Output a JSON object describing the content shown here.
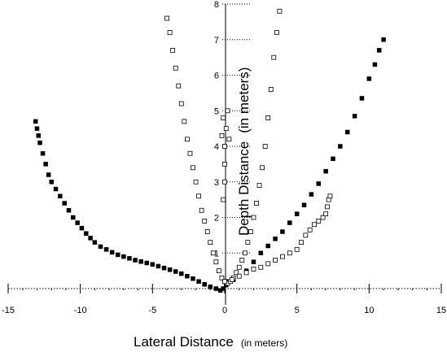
{
  "chart_data": {
    "type": "scatter",
    "title": "",
    "xlabel": "Lateral Distance",
    "xlabel_unit": "(in meters)",
    "ylabel": "Depth Distance",
    "ylabel_unit": "(in meters)",
    "xlim": [
      -15,
      15
    ],
    "ylim": [
      0,
      8
    ],
    "x_ticks": [
      -15,
      -10,
      -5,
      0,
      5,
      10,
      15
    ],
    "y_ticks": [
      1,
      2,
      3,
      4,
      5,
      6,
      7,
      8
    ],
    "grid": false,
    "legend": "none",
    "series": [
      {
        "marker": "filled-square",
        "points": [
          [
            -13.1,
            4.7
          ],
          [
            -13.0,
            4.5
          ],
          [
            -12.9,
            4.3
          ],
          [
            -12.8,
            4.1
          ],
          [
            -12.6,
            3.8
          ],
          [
            -12.4,
            3.5
          ],
          [
            -12.2,
            3.2
          ],
          [
            -12.0,
            3.0
          ],
          [
            -11.7,
            2.8
          ],
          [
            -11.4,
            2.6
          ],
          [
            -11.1,
            2.4
          ],
          [
            -10.8,
            2.2
          ],
          [
            -10.5,
            2.0
          ],
          [
            -10.2,
            1.85
          ],
          [
            -9.9,
            1.7
          ],
          [
            -9.6,
            1.55
          ],
          [
            -9.3,
            1.42
          ],
          [
            -9.0,
            1.3
          ],
          [
            -8.6,
            1.18
          ],
          [
            -8.2,
            1.1
          ],
          [
            -7.8,
            1.02
          ],
          [
            -7.4,
            0.95
          ],
          [
            -7.0,
            0.9
          ],
          [
            -6.6,
            0.85
          ],
          [
            -6.2,
            0.8
          ],
          [
            -5.8,
            0.76
          ],
          [
            -5.4,
            0.72
          ],
          [
            -5.0,
            0.68
          ],
          [
            -4.6,
            0.63
          ],
          [
            -4.2,
            0.58
          ],
          [
            -3.8,
            0.53
          ],
          [
            -3.4,
            0.48
          ],
          [
            -3.0,
            0.42
          ],
          [
            -2.6,
            0.35
          ],
          [
            -2.2,
            0.28
          ],
          [
            -1.8,
            0.2
          ],
          [
            -1.4,
            0.12
          ],
          [
            -1.0,
            0.05
          ],
          [
            -0.6,
            0.0
          ],
          [
            -0.3,
            -0.05
          ],
          [
            -0.1,
            0.0
          ],
          [
            0.1,
            0.1
          ],
          [
            0.3,
            0.2
          ],
          [
            0.6,
            0.25
          ],
          [
            1.0,
            0.35
          ],
          [
            1.5,
            0.5
          ],
          [
            2.0,
            0.75
          ],
          [
            2.5,
            1.0
          ],
          [
            3.0,
            1.2
          ],
          [
            3.5,
            1.4
          ],
          [
            4.0,
            1.6
          ],
          [
            4.5,
            1.85
          ],
          [
            5.0,
            2.1
          ],
          [
            5.5,
            2.35
          ],
          [
            6.0,
            2.65
          ],
          [
            6.5,
            2.95
          ],
          [
            7.0,
            3.3
          ],
          [
            7.5,
            3.65
          ],
          [
            8.0,
            4.0
          ],
          [
            8.5,
            4.4
          ],
          [
            9.0,
            4.85
          ],
          [
            9.5,
            5.35
          ],
          [
            10.0,
            5.9
          ],
          [
            10.4,
            6.3
          ],
          [
            10.7,
            6.7
          ],
          [
            11.0,
            7.0
          ]
        ]
      },
      {
        "marker": "open-square",
        "points": [
          [
            -4.0,
            7.6
          ],
          [
            -3.8,
            7.2
          ],
          [
            -3.6,
            6.7
          ],
          [
            -3.4,
            6.2
          ],
          [
            -3.2,
            5.7
          ],
          [
            -3.0,
            5.2
          ],
          [
            -2.8,
            4.7
          ],
          [
            -2.6,
            4.2
          ],
          [
            -2.4,
            3.8
          ],
          [
            -2.2,
            3.4
          ],
          [
            -2.0,
            3.0
          ],
          [
            -1.8,
            2.6
          ],
          [
            -1.6,
            2.2
          ],
          [
            -1.4,
            1.9
          ],
          [
            -1.2,
            1.6
          ],
          [
            -1.0,
            1.3
          ],
          [
            -0.8,
            1.0
          ],
          [
            -0.6,
            0.75
          ],
          [
            -0.4,
            0.5
          ],
          [
            -0.2,
            0.3
          ],
          [
            0.0,
            0.2
          ],
          [
            0.2,
            0.15
          ],
          [
            0.4,
            0.2
          ],
          [
            0.6,
            0.3
          ],
          [
            0.8,
            0.45
          ],
          [
            1.0,
            0.6
          ],
          [
            1.2,
            0.8
          ],
          [
            1.4,
            1.0
          ],
          [
            1.6,
            1.3
          ],
          [
            1.8,
            1.6
          ],
          [
            2.0,
            2.0
          ],
          [
            2.2,
            2.4
          ],
          [
            2.4,
            2.9
          ],
          [
            2.6,
            3.4
          ],
          [
            2.8,
            4.0
          ],
          [
            3.0,
            4.8
          ],
          [
            3.2,
            5.6
          ],
          [
            3.4,
            6.5
          ],
          [
            3.6,
            7.2
          ],
          [
            3.8,
            7.8
          ],
          [
            0.0,
            4.0
          ],
          [
            0.1,
            4.5
          ],
          [
            0.2,
            5.0
          ],
          [
            -0.1,
            4.8
          ],
          [
            0.3,
            4.2
          ],
          [
            -0.2,
            4.3
          ],
          [
            0.0,
            3.5
          ],
          [
            0.0,
            3.0
          ],
          [
            -0.1,
            2.5
          ]
        ]
      },
      {
        "marker": "open-square",
        "points": [
          [
            0.0,
            0.2
          ],
          [
            0.5,
            0.25
          ],
          [
            1.0,
            0.35
          ],
          [
            1.5,
            0.45
          ],
          [
            2.0,
            0.55
          ],
          [
            2.5,
            0.6
          ],
          [
            3.0,
            0.7
          ],
          [
            3.5,
            0.8
          ],
          [
            4.0,
            0.9
          ],
          [
            4.5,
            1.0
          ],
          [
            5.0,
            1.1
          ],
          [
            5.3,
            1.3
          ],
          [
            5.6,
            1.5
          ],
          [
            5.9,
            1.65
          ],
          [
            6.2,
            1.8
          ],
          [
            6.5,
            1.9
          ],
          [
            6.8,
            2.0
          ],
          [
            7.0,
            2.1
          ],
          [
            7.1,
            2.3
          ],
          [
            7.2,
            2.5
          ],
          [
            7.3,
            2.6
          ]
        ]
      }
    ]
  }
}
